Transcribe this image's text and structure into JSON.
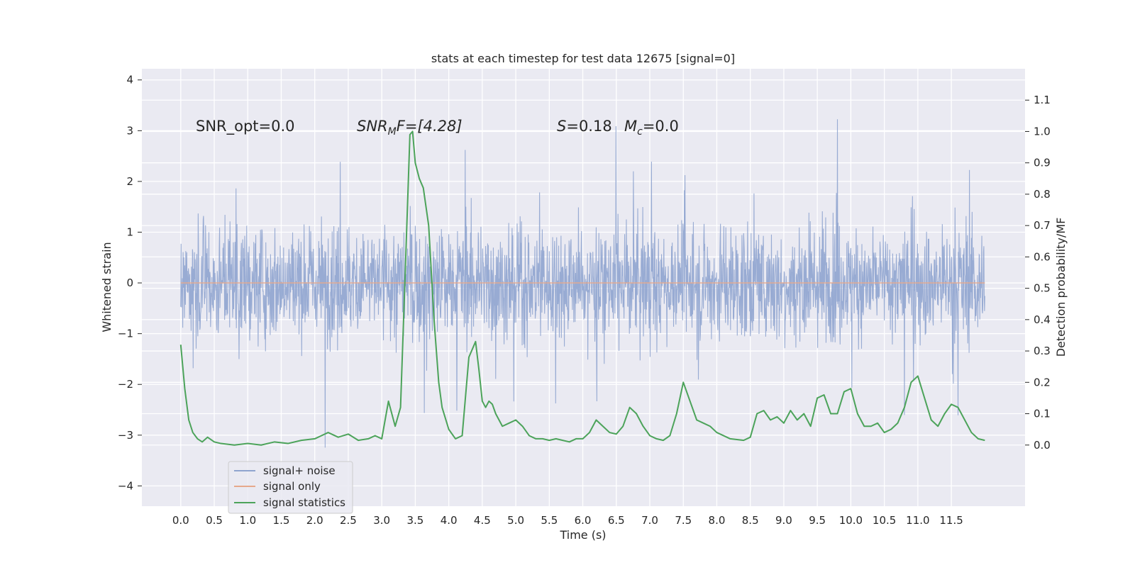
{
  "chart_data": {
    "type": "line",
    "title": "stats at each timestep for test data 12675 [signal=0]",
    "xlabel": "Time (s)",
    "ylabel_left": "Whitened strain",
    "ylabel_right": "Detection probability/MF",
    "xlim": [
      -0.58,
      12.6
    ],
    "ylim_left": [
      -4.4,
      4.22
    ],
    "ylim_right": [
      -0.195,
      1.2
    ],
    "x_ticks": [
      "0.0",
      "0.5",
      "1.0",
      "1.5",
      "2.0",
      "2.5",
      "3.0",
      "3.5",
      "4.0",
      "4.5",
      "5.0",
      "5.5",
      "6.0",
      "6.5",
      "7.0",
      "7.5",
      "8.0",
      "8.5",
      "9.0",
      "9.5",
      "10.0",
      "10.5",
      "11.0",
      "11.5"
    ],
    "y_ticks_left": [
      "−4",
      "−3",
      "−2",
      "−1",
      "0",
      "1",
      "2",
      "3",
      "4"
    ],
    "y_ticks_right": [
      "0.0",
      "0.1",
      "0.2",
      "0.3",
      "0.4",
      "0.5",
      "0.6",
      "0.7",
      "0.8",
      "0.9",
      "1.0",
      "1.1"
    ],
    "grid": true,
    "legend_position": "lower-left",
    "annotations": {
      "snr_opt": "SNR_opt=0.0",
      "snr_mf_main": "SNR",
      "snr_mf_sub": "M",
      "snr_mf_rest": "F=[4.28]",
      "s_sym": "S",
      "s_val": "=0.18",
      "mc_sym": "M",
      "mc_sub": "c",
      "mc_val": "=0.0"
    },
    "series": [
      {
        "name": "signal+ noise",
        "color": "#8fa4cf",
        "axis": "left",
        "description_values": "dense noise, typical range about ±1.2, peaks up to about ±3.8",
        "x_range": [
          0.0,
          12.0
        ],
        "envelope_typical": [
          -1.3,
          1.2
        ]
      },
      {
        "name": "signal only",
        "color": "#e6a88c",
        "axis": "left",
        "x": [
          0.0,
          12.0
        ],
        "y": [
          0.0,
          0.0
        ]
      },
      {
        "name": "signal statistics",
        "color": "#4ca35a",
        "axis": "right",
        "x": [
          0.0,
          0.06,
          0.12,
          0.18,
          0.25,
          0.32,
          0.4,
          0.5,
          0.6,
          0.8,
          1.0,
          1.2,
          1.4,
          1.6,
          1.8,
          2.0,
          2.1,
          2.2,
          2.35,
          2.5,
          2.65,
          2.8,
          2.9,
          3.0,
          3.1,
          3.2,
          3.28,
          3.35,
          3.42,
          3.46,
          3.5,
          3.56,
          3.62,
          3.7,
          3.78,
          3.85,
          3.9,
          4.0,
          4.1,
          4.2,
          4.3,
          4.4,
          4.45,
          4.5,
          4.55,
          4.6,
          4.65,
          4.7,
          4.8,
          4.9,
          5.0,
          5.1,
          5.2,
          5.3,
          5.4,
          5.5,
          5.6,
          5.7,
          5.8,
          5.9,
          6.0,
          6.1,
          6.2,
          6.3,
          6.4,
          6.5,
          6.6,
          6.7,
          6.8,
          6.9,
          7.0,
          7.1,
          7.2,
          7.3,
          7.4,
          7.5,
          7.6,
          7.7,
          7.8,
          7.9,
          8.0,
          8.2,
          8.4,
          8.5,
          8.6,
          8.7,
          8.8,
          8.9,
          9.0,
          9.1,
          9.2,
          9.3,
          9.4,
          9.5,
          9.6,
          9.7,
          9.8,
          9.9,
          10.0,
          10.1,
          10.2,
          10.3,
          10.4,
          10.5,
          10.6,
          10.7,
          10.8,
          10.9,
          11.0,
          11.1,
          11.2,
          11.3,
          11.4,
          11.5,
          11.6,
          11.7,
          11.8,
          11.9,
          12.0
        ],
        "y": [
          0.32,
          0.18,
          0.08,
          0.04,
          0.02,
          0.01,
          0.025,
          0.01,
          0.005,
          0.0,
          0.005,
          0.0,
          0.01,
          0.005,
          0.015,
          0.02,
          0.03,
          0.04,
          0.025,
          0.035,
          0.015,
          0.02,
          0.03,
          0.02,
          0.14,
          0.06,
          0.12,
          0.55,
          0.99,
          1.0,
          0.9,
          0.85,
          0.82,
          0.7,
          0.4,
          0.2,
          0.12,
          0.05,
          0.02,
          0.03,
          0.28,
          0.33,
          0.24,
          0.14,
          0.12,
          0.14,
          0.13,
          0.1,
          0.06,
          0.07,
          0.08,
          0.06,
          0.03,
          0.02,
          0.02,
          0.015,
          0.02,
          0.015,
          0.01,
          0.02,
          0.02,
          0.04,
          0.08,
          0.06,
          0.04,
          0.035,
          0.06,
          0.12,
          0.1,
          0.06,
          0.03,
          0.02,
          0.015,
          0.03,
          0.1,
          0.2,
          0.14,
          0.08,
          0.07,
          0.06,
          0.04,
          0.02,
          0.015,
          0.025,
          0.1,
          0.11,
          0.08,
          0.09,
          0.07,
          0.11,
          0.08,
          0.1,
          0.06,
          0.15,
          0.16,
          0.1,
          0.1,
          0.17,
          0.18,
          0.1,
          0.06,
          0.06,
          0.07,
          0.04,
          0.05,
          0.07,
          0.12,
          0.2,
          0.22,
          0.15,
          0.08,
          0.06,
          0.1,
          0.13,
          0.12,
          0.08,
          0.04,
          0.02,
          0.015
        ]
      }
    ]
  }
}
